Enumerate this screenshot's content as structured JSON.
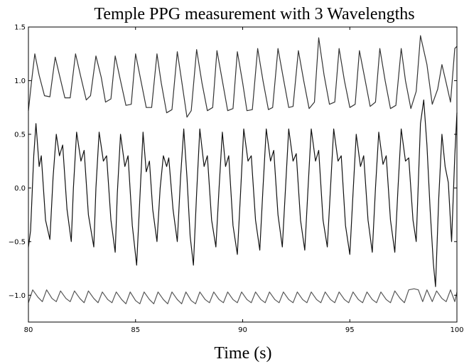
{
  "chart_data": {
    "type": "line",
    "title": "Temple PPG measurement with 3 Wavelengths",
    "xlabel": "Time (s)",
    "ylabel": "",
    "xlim": [
      80,
      100
    ],
    "ylim": [
      -1.25,
      1.5
    ],
    "x_ticks": [
      80,
      85,
      90,
      95,
      100
    ],
    "x_tick_labels": [
      "80",
      "85",
      "90",
      "95",
      "100"
    ],
    "y_ticks": [
      1.5,
      1.0,
      0.5,
      0.0,
      -0.5,
      -1.0
    ],
    "y_tick_labels": [
      "1.5",
      "1.0",
      "0.5",
      "0.0",
      "−0.5",
      "−1.0"
    ],
    "grid": false,
    "legend": "none",
    "series": [
      {
        "color": "#333333",
        "points": [
          [
            80.0,
            0.72
          ],
          [
            80.15,
            1.0
          ],
          [
            80.3,
            1.25
          ],
          [
            80.5,
            1.05
          ],
          [
            80.75,
            0.86
          ],
          [
            81.0,
            0.85
          ],
          [
            81.25,
            1.22
          ],
          [
            81.45,
            1.05
          ],
          [
            81.7,
            0.84
          ],
          [
            81.95,
            0.84
          ],
          [
            82.2,
            1.25
          ],
          [
            82.45,
            1.03
          ],
          [
            82.7,
            0.82
          ],
          [
            82.9,
            0.86
          ],
          [
            83.15,
            1.23
          ],
          [
            83.4,
            1.03
          ],
          [
            83.6,
            0.8
          ],
          [
            83.85,
            0.83
          ],
          [
            84.05,
            1.23
          ],
          [
            84.3,
            1.0
          ],
          [
            84.55,
            0.77
          ],
          [
            84.8,
            0.78
          ],
          [
            85.0,
            1.25
          ],
          [
            85.25,
            1.0
          ],
          [
            85.5,
            0.75
          ],
          [
            85.75,
            0.75
          ],
          [
            86.0,
            1.25
          ],
          [
            86.2,
            0.98
          ],
          [
            86.45,
            0.7
          ],
          [
            86.7,
            0.73
          ],
          [
            86.95,
            1.27
          ],
          [
            87.15,
            1.0
          ],
          [
            87.4,
            0.66
          ],
          [
            87.6,
            0.72
          ],
          [
            87.85,
            1.29
          ],
          [
            88.1,
            0.98
          ],
          [
            88.35,
            0.72
          ],
          [
            88.6,
            0.75
          ],
          [
            88.8,
            1.28
          ],
          [
            89.05,
            1.0
          ],
          [
            89.3,
            0.72
          ],
          [
            89.55,
            0.74
          ],
          [
            89.75,
            1.27
          ],
          [
            90.0,
            0.98
          ],
          [
            90.2,
            0.72
          ],
          [
            90.45,
            0.73
          ],
          [
            90.7,
            1.3
          ],
          [
            90.95,
            1.0
          ],
          [
            91.2,
            0.73
          ],
          [
            91.4,
            0.75
          ],
          [
            91.65,
            1.3
          ],
          [
            91.9,
            1.02
          ],
          [
            92.15,
            0.75
          ],
          [
            92.35,
            0.76
          ],
          [
            92.6,
            1.28
          ],
          [
            92.85,
            1.0
          ],
          [
            93.1,
            0.74
          ],
          [
            93.35,
            0.8
          ],
          [
            93.55,
            1.4
          ],
          [
            93.8,
            1.05
          ],
          [
            94.05,
            0.78
          ],
          [
            94.3,
            0.8
          ],
          [
            94.5,
            1.3
          ],
          [
            94.75,
            1.0
          ],
          [
            95.0,
            0.75
          ],
          [
            95.25,
            0.78
          ],
          [
            95.45,
            1.28
          ],
          [
            95.7,
            1.02
          ],
          [
            95.95,
            0.76
          ],
          [
            96.2,
            0.8
          ],
          [
            96.4,
            1.3
          ],
          [
            96.65,
            1.0
          ],
          [
            96.9,
            0.74
          ],
          [
            97.15,
            0.77
          ],
          [
            97.4,
            1.3
          ],
          [
            97.6,
            1.0
          ],
          [
            97.85,
            0.74
          ],
          [
            98.1,
            0.9
          ],
          [
            98.3,
            1.42
          ],
          [
            98.6,
            1.15
          ],
          [
            98.85,
            0.78
          ],
          [
            99.1,
            0.92
          ],
          [
            99.3,
            1.15
          ],
          [
            99.5,
            0.98
          ],
          [
            99.7,
            0.8
          ],
          [
            99.9,
            1.3
          ],
          [
            100.0,
            1.32
          ]
        ]
      },
      {
        "color": "#111111",
        "points": [
          [
            80.0,
            -0.55
          ],
          [
            80.1,
            -0.4
          ],
          [
            80.25,
            0.3
          ],
          [
            80.35,
            0.6
          ],
          [
            80.5,
            0.2
          ],
          [
            80.6,
            0.3
          ],
          [
            80.8,
            -0.3
          ],
          [
            81.0,
            -0.48
          ],
          [
            81.15,
            0.1
          ],
          [
            81.3,
            0.5
          ],
          [
            81.45,
            0.3
          ],
          [
            81.6,
            0.4
          ],
          [
            81.8,
            -0.2
          ],
          [
            82.0,
            -0.5
          ],
          [
            82.1,
            0.0
          ],
          [
            82.25,
            0.52
          ],
          [
            82.45,
            0.25
          ],
          [
            82.6,
            0.35
          ],
          [
            82.8,
            -0.25
          ],
          [
            83.05,
            -0.55
          ],
          [
            83.15,
            0.0
          ],
          [
            83.3,
            0.52
          ],
          [
            83.5,
            0.25
          ],
          [
            83.65,
            0.3
          ],
          [
            83.85,
            -0.3
          ],
          [
            84.05,
            -0.6
          ],
          [
            84.15,
            -0.05
          ],
          [
            84.3,
            0.5
          ],
          [
            84.5,
            0.2
          ],
          [
            84.65,
            0.3
          ],
          [
            84.85,
            -0.35
          ],
          [
            85.05,
            -0.72
          ],
          [
            85.2,
            -0.1
          ],
          [
            85.35,
            0.52
          ],
          [
            85.5,
            0.15
          ],
          [
            85.65,
            0.25
          ],
          [
            85.8,
            -0.2
          ],
          [
            86.0,
            -0.5
          ],
          [
            86.15,
            0.0
          ],
          [
            86.3,
            0.3
          ],
          [
            86.45,
            0.2
          ],
          [
            86.55,
            0.28
          ],
          [
            86.75,
            -0.2
          ],
          [
            86.95,
            -0.5
          ],
          [
            87.1,
            0.1
          ],
          [
            87.25,
            0.55
          ],
          [
            87.4,
            0.1
          ],
          [
            87.55,
            -0.45
          ],
          [
            87.7,
            -0.72
          ],
          [
            87.85,
            -0.05
          ],
          [
            88.0,
            0.55
          ],
          [
            88.2,
            0.2
          ],
          [
            88.35,
            0.3
          ],
          [
            88.55,
            -0.3
          ],
          [
            88.75,
            -0.55
          ],
          [
            88.9,
            0.0
          ],
          [
            89.05,
            0.52
          ],
          [
            89.2,
            0.2
          ],
          [
            89.35,
            0.3
          ],
          [
            89.55,
            -0.35
          ],
          [
            89.75,
            -0.62
          ],
          [
            89.9,
            -0.05
          ],
          [
            90.05,
            0.55
          ],
          [
            90.25,
            0.25
          ],
          [
            90.4,
            0.3
          ],
          [
            90.6,
            -0.3
          ],
          [
            90.8,
            -0.58
          ],
          [
            90.95,
            0.0
          ],
          [
            91.1,
            0.55
          ],
          [
            91.3,
            0.25
          ],
          [
            91.45,
            0.35
          ],
          [
            91.65,
            -0.25
          ],
          [
            91.85,
            -0.55
          ],
          [
            92.0,
            0.0
          ],
          [
            92.15,
            0.55
          ],
          [
            92.35,
            0.25
          ],
          [
            92.5,
            0.32
          ],
          [
            92.7,
            -0.3
          ],
          [
            92.9,
            -0.58
          ],
          [
            93.05,
            0.0
          ],
          [
            93.2,
            0.55
          ],
          [
            93.4,
            0.25
          ],
          [
            93.55,
            0.35
          ],
          [
            93.75,
            -0.3
          ],
          [
            93.95,
            -0.55
          ],
          [
            94.1,
            0.0
          ],
          [
            94.25,
            0.55
          ],
          [
            94.45,
            0.25
          ],
          [
            94.6,
            0.3
          ],
          [
            94.8,
            -0.35
          ],
          [
            95.0,
            -0.62
          ],
          [
            95.15,
            -0.05
          ],
          [
            95.3,
            0.5
          ],
          [
            95.5,
            0.2
          ],
          [
            95.65,
            0.3
          ],
          [
            95.85,
            -0.3
          ],
          [
            96.05,
            -0.6
          ],
          [
            96.2,
            0.0
          ],
          [
            96.35,
            0.52
          ],
          [
            96.55,
            0.22
          ],
          [
            96.7,
            0.3
          ],
          [
            96.9,
            -0.3
          ],
          [
            97.1,
            -0.6
          ],
          [
            97.25,
            0.0
          ],
          [
            97.4,
            0.55
          ],
          [
            97.6,
            0.25
          ],
          [
            97.75,
            0.28
          ],
          [
            97.95,
            -0.3
          ],
          [
            98.1,
            -0.5
          ],
          [
            98.3,
            0.6
          ],
          [
            98.45,
            0.82
          ],
          [
            98.6,
            0.4
          ],
          [
            98.75,
            -0.2
          ],
          [
            98.9,
            -0.7
          ],
          [
            99.0,
            -0.92
          ],
          [
            99.15,
            -0.1
          ],
          [
            99.3,
            0.5
          ],
          [
            99.45,
            0.2
          ],
          [
            99.6,
            0.05
          ],
          [
            99.75,
            -0.5
          ],
          [
            99.9,
            0.3
          ],
          [
            100.0,
            0.7
          ]
        ]
      },
      {
        "color": "#555555",
        "points": [
          [
            80.0,
            -1.07
          ],
          [
            80.2,
            -0.95
          ],
          [
            80.45,
            -1.02
          ],
          [
            80.65,
            -1.06
          ],
          [
            80.85,
            -0.95
          ],
          [
            81.1,
            -1.03
          ],
          [
            81.3,
            -1.06
          ],
          [
            81.5,
            -0.96
          ],
          [
            81.75,
            -1.03
          ],
          [
            81.95,
            -1.06
          ],
          [
            82.15,
            -0.96
          ],
          [
            82.4,
            -1.03
          ],
          [
            82.6,
            -1.07
          ],
          [
            82.8,
            -0.96
          ],
          [
            83.05,
            -1.03
          ],
          [
            83.25,
            -1.07
          ],
          [
            83.45,
            -0.97
          ],
          [
            83.7,
            -1.04
          ],
          [
            83.9,
            -1.07
          ],
          [
            84.1,
            -0.97
          ],
          [
            84.35,
            -1.04
          ],
          [
            84.55,
            -1.08
          ],
          [
            84.75,
            -0.97
          ],
          [
            85.0,
            -1.05
          ],
          [
            85.2,
            -1.08
          ],
          [
            85.4,
            -0.97
          ],
          [
            85.65,
            -1.04
          ],
          [
            85.85,
            -1.08
          ],
          [
            86.05,
            -0.97
          ],
          [
            86.3,
            -1.04
          ],
          [
            86.5,
            -1.08
          ],
          [
            86.7,
            -0.97
          ],
          [
            86.95,
            -1.04
          ],
          [
            87.15,
            -1.08
          ],
          [
            87.35,
            -0.97
          ],
          [
            87.6,
            -1.05
          ],
          [
            87.8,
            -1.08
          ],
          [
            88.0,
            -0.97
          ],
          [
            88.25,
            -1.04
          ],
          [
            88.45,
            -1.07
          ],
          [
            88.65,
            -0.97
          ],
          [
            88.9,
            -1.04
          ],
          [
            89.1,
            -1.07
          ],
          [
            89.3,
            -0.97
          ],
          [
            89.55,
            -1.04
          ],
          [
            89.75,
            -1.07
          ],
          [
            89.95,
            -0.97
          ],
          [
            90.2,
            -1.04
          ],
          [
            90.4,
            -1.07
          ],
          [
            90.6,
            -0.97
          ],
          [
            90.85,
            -1.04
          ],
          [
            91.05,
            -1.07
          ],
          [
            91.25,
            -0.97
          ],
          [
            91.5,
            -1.04
          ],
          [
            91.7,
            -1.07
          ],
          [
            91.9,
            -0.97
          ],
          [
            92.15,
            -1.04
          ],
          [
            92.35,
            -1.07
          ],
          [
            92.55,
            -0.97
          ],
          [
            92.8,
            -1.04
          ],
          [
            93.0,
            -1.07
          ],
          [
            93.2,
            -0.97
          ],
          [
            93.45,
            -1.04
          ],
          [
            93.65,
            -1.07
          ],
          [
            93.85,
            -0.97
          ],
          [
            94.1,
            -1.04
          ],
          [
            94.3,
            -1.07
          ],
          [
            94.5,
            -0.97
          ],
          [
            94.75,
            -1.04
          ],
          [
            94.95,
            -1.07
          ],
          [
            95.15,
            -0.97
          ],
          [
            95.4,
            -1.04
          ],
          [
            95.6,
            -1.07
          ],
          [
            95.8,
            -0.97
          ],
          [
            96.05,
            -1.04
          ],
          [
            96.25,
            -1.07
          ],
          [
            96.45,
            -0.97
          ],
          [
            96.7,
            -1.04
          ],
          [
            96.9,
            -1.07
          ],
          [
            97.1,
            -0.96
          ],
          [
            97.35,
            -1.03
          ],
          [
            97.55,
            -1.07
          ],
          [
            97.75,
            -0.95
          ],
          [
            98.0,
            -0.94
          ],
          [
            98.2,
            -0.95
          ],
          [
            98.4,
            -1.06
          ],
          [
            98.6,
            -0.95
          ],
          [
            98.85,
            -1.06
          ],
          [
            99.05,
            -0.96
          ],
          [
            99.3,
            -1.03
          ],
          [
            99.5,
            -1.06
          ],
          [
            99.7,
            -0.95
          ],
          [
            99.9,
            -1.06
          ],
          [
            100.0,
            -0.97
          ]
        ]
      }
    ]
  }
}
